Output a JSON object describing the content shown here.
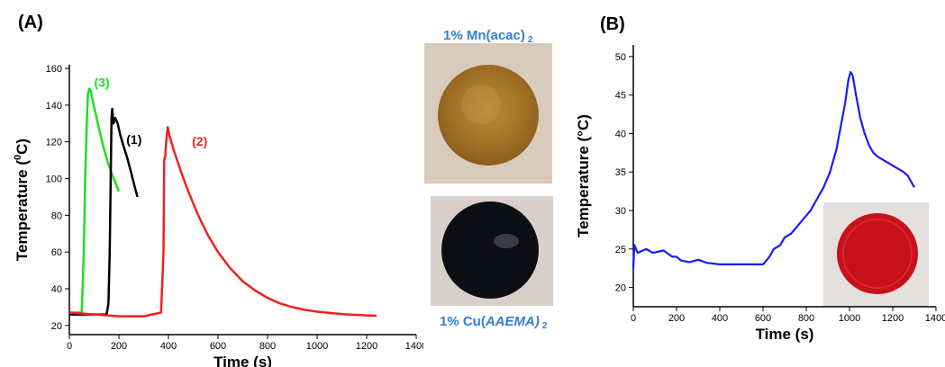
{
  "panel_a_label": "(A)",
  "panel_b_label": "(B)",
  "photo_top": {
    "caption_main": "1% Mn(acac)",
    "caption_sub": "2"
  },
  "photo_bottom": {
    "caption_prefix": "1% Cu(",
    "caption_italic": "AAEMA)",
    "caption_sub": "2"
  },
  "chart_data": [
    {
      "type": "line",
      "xlabel": "Time (s)",
      "ylabel_parts": {
        "pre": "Temperature (",
        "sup": "0",
        "post": "C)"
      },
      "xlim": [
        0,
        1400
      ],
      "ylim": [
        15,
        162
      ],
      "xticks": [
        0,
        200,
        400,
        600,
        800,
        1000,
        1200,
        1400
      ],
      "yticks": [
        20,
        40,
        60,
        80,
        100,
        120,
        140,
        160
      ],
      "grid": false,
      "series": [
        {
          "name": "(3)",
          "color": "#22dd22",
          "x": [
            0,
            50,
            58,
            64,
            70,
            75,
            80,
            86,
            95,
            110,
            125,
            140,
            155,
            170,
            185,
            200
          ],
          "y": [
            27,
            27,
            60,
            100,
            130,
            146,
            149,
            148,
            142,
            133,
            124,
            116,
            109,
            103,
            98,
            93
          ]
        },
        {
          "name": "(1)",
          "color": "#000000",
          "x": [
            0,
            150,
            158,
            163,
            167,
            170,
            173,
            178,
            185,
            195,
            205,
            218,
            232,
            248,
            263,
            275
          ],
          "y": [
            26,
            26,
            32,
            60,
            100,
            133,
            138,
            130,
            133,
            130,
            124,
            118,
            112,
            104,
            96,
            90
          ]
        },
        {
          "name": "(2)",
          "color": "#ee2222",
          "x": [
            0,
            100,
            200,
            300,
            370,
            380,
            383,
            387,
            392,
            397,
            403,
            420,
            450,
            480,
            520,
            560,
            600,
            650,
            700,
            750,
            800,
            850,
            900,
            950,
            1000,
            1050,
            1100,
            1150,
            1200,
            1240
          ],
          "y": [
            27,
            26,
            25,
            25,
            27,
            60,
            110,
            112,
            122,
            128,
            124,
            116,
            104,
            93,
            80,
            69,
            60,
            51,
            44,
            39,
            35,
            32,
            30,
            28.5,
            27.5,
            26.8,
            26.2,
            25.8,
            25.5,
            25.3
          ]
        }
      ],
      "annotations": [
        "(3)",
        "(1)",
        "(2)"
      ]
    },
    {
      "type": "line",
      "xlabel": "Time (s)",
      "ylabel": "Temperature (°C)",
      "xlim": [
        0,
        1400
      ],
      "ylim": [
        17.5,
        51.5
      ],
      "xticks": [
        0,
        200,
        400,
        600,
        800,
        1000,
        1200,
        1400
      ],
      "yticks": [
        20,
        25,
        30,
        35,
        40,
        45,
        50
      ],
      "grid": false,
      "series": [
        {
          "color": "#1a1aff",
          "x": [
            0,
            5,
            20,
            60,
            90,
            140,
            180,
            200,
            220,
            260,
            300,
            340,
            400,
            500,
            600,
            630,
            650,
            680,
            700,
            730,
            760,
            790,
            820,
            850,
            880,
            910,
            940,
            960,
            980,
            995,
            1005,
            1015,
            1030,
            1050,
            1070,
            1090,
            1110,
            1130,
            1160,
            1190,
            1220,
            1250,
            1270,
            1290,
            1300
          ],
          "y": [
            22.5,
            25.5,
            24.5,
            25,
            24.5,
            24.8,
            24,
            24,
            23.5,
            23.3,
            23.6,
            23.2,
            23,
            23,
            23,
            24,
            25,
            25.5,
            26.5,
            27,
            28,
            29,
            30,
            31.5,
            33,
            35,
            38,
            41,
            44,
            47,
            48,
            47.5,
            45,
            42,
            40,
            38.5,
            37.5,
            37,
            36.5,
            36,
            35.5,
            35,
            34.5,
            33.5,
            33
          ]
        }
      ]
    }
  ]
}
